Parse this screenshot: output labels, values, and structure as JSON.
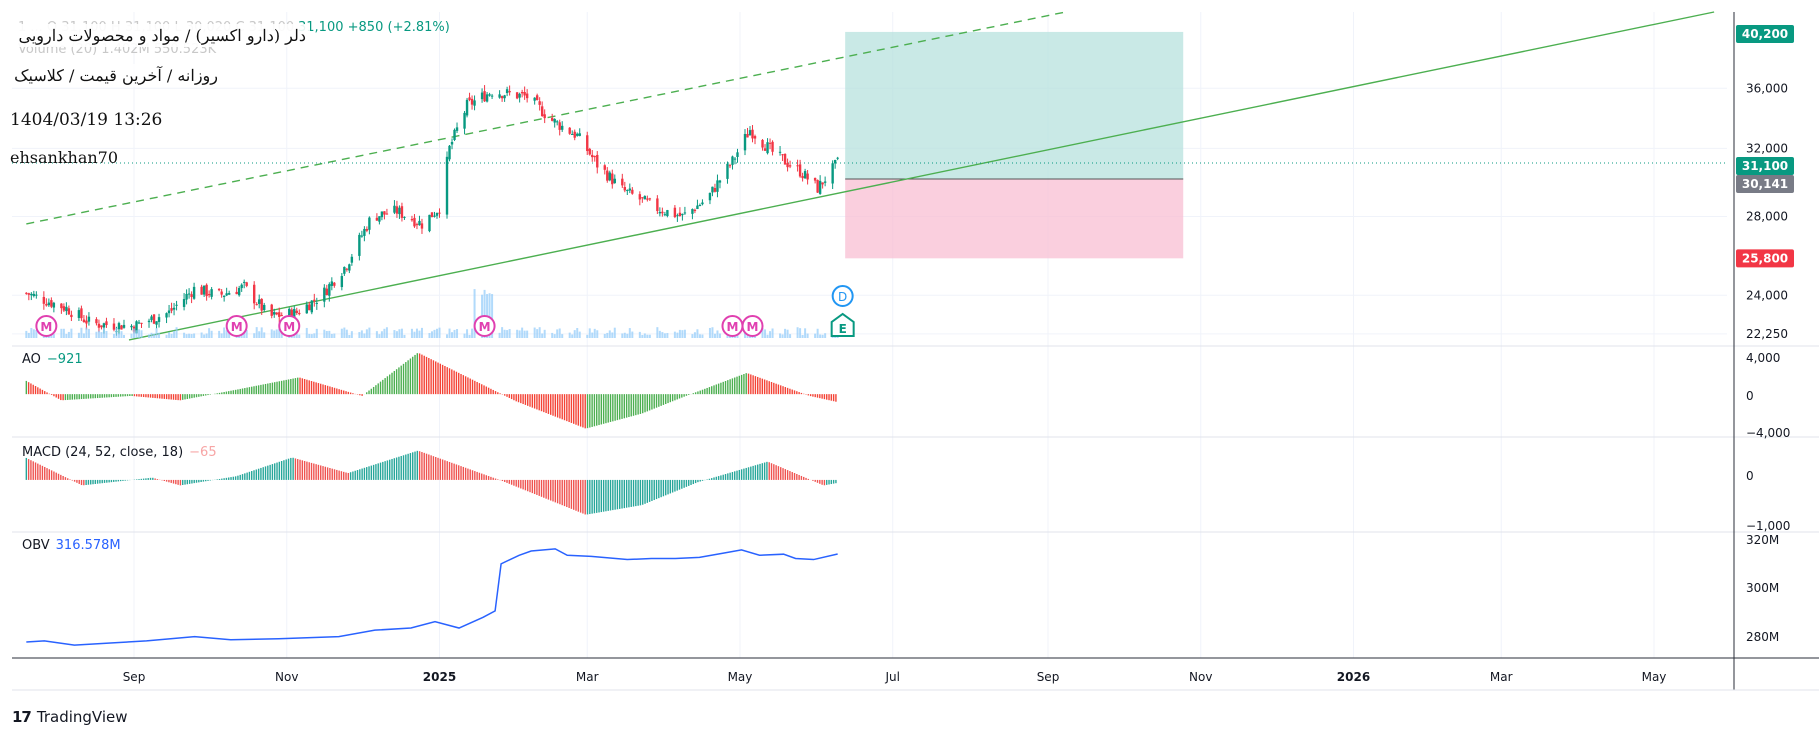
{
  "header": {
    "title": "دلر (دارو اکسیر) / مواد و محصولات دارویی",
    "subtitle": "روزانه / آخرین قیمت / کلاسیک",
    "datetime": "1404/03/19 13:26",
    "author": "ehsankhan70",
    "ohlc_ghost": "1 ... O 31,100 H 31,100 L 30,020 C 31,100",
    "volume_ghost": "Volume (20)  1.402M  550.523K",
    "change_abs": "+850",
    "change_pct": "(+2.81%)",
    "last_price_inline": "31,100"
  },
  "branding": {
    "logo": "TradingView"
  },
  "colors": {
    "up": "#089981",
    "down": "#f23645",
    "ao_up": "#4caf50",
    "ao_down": "#f44336",
    "macd_up": "#26a69a",
    "macd_down": "#ef5350",
    "obv": "#2962ff",
    "trend": "#4caf50",
    "event_m": "#e040b0",
    "event_d": "#2196f3",
    "event_e": "#089981",
    "profit_zone": "#b2dfdb",
    "loss_zone": "#f8bbd0"
  },
  "chart_data": {
    "type": "candlestick",
    "symbol_description": "دلر (دارو اکسیر) / مواد و محصولات دارویی",
    "timeframe": "daily",
    "x_ticks": [
      "Sep",
      "Nov",
      "2025",
      "Mar",
      "May",
      "Jul",
      "Sep",
      "Nov",
      "2026",
      "Mar",
      "May"
    ],
    "x_tick_dates": [
      "2024-09-01",
      "2024-11-01",
      "2025-01-01",
      "2025-03-01",
      "2025-05-01",
      "2025-07-01",
      "2025-09-01",
      "2025-11-01",
      "2026-01-01",
      "2026-03-01",
      "2026-05-01"
    ],
    "price_scale": {
      "type": "log",
      "ticks": [
        22250,
        24000,
        28000,
        32000,
        36000
      ],
      "ylim": [
        21900,
        41800
      ]
    },
    "price_path": [
      {
        "date": "2024-07-20",
        "close": 24100
      },
      {
        "date": "2024-08-05",
        "close": 23400
      },
      {
        "date": "2024-08-15",
        "close": 22700
      },
      {
        "date": "2024-09-01",
        "close": 22600
      },
      {
        "date": "2024-09-15",
        "close": 23200
      },
      {
        "date": "2024-09-25",
        "close": 24300
      },
      {
        "date": "2024-10-05",
        "close": 24000
      },
      {
        "date": "2024-10-15",
        "close": 24400
      },
      {
        "date": "2024-10-25",
        "close": 23000
      },
      {
        "date": "2024-11-05",
        "close": 23200
      },
      {
        "date": "2024-11-15",
        "close": 24000
      },
      {
        "date": "2024-11-25",
        "close": 25500
      },
      {
        "date": "2024-12-05",
        "close": 28000
      },
      {
        "date": "2024-12-15",
        "close": 28300
      },
      {
        "date": "2024-12-25",
        "close": 27600
      },
      {
        "date": "2025-01-01",
        "close": 28500
      },
      {
        "date": "2025-01-05",
        "close": 32000
      },
      {
        "date": "2025-01-12",
        "close": 34800
      },
      {
        "date": "2025-01-22",
        "close": 35800
      },
      {
        "date": "2025-02-05",
        "close": 35400
      },
      {
        "date": "2025-02-15",
        "close": 33800
      },
      {
        "date": "2025-02-25",
        "close": 32800
      },
      {
        "date": "2025-03-05",
        "close": 31000
      },
      {
        "date": "2025-03-15",
        "close": 29500
      },
      {
        "date": "2025-03-28",
        "close": 28500
      },
      {
        "date": "2025-04-08",
        "close": 28000
      },
      {
        "date": "2025-04-18",
        "close": 29000
      },
      {
        "date": "2025-04-28",
        "close": 31200
      },
      {
        "date": "2025-05-05",
        "close": 33200
      },
      {
        "date": "2025-05-15",
        "close": 31600
      },
      {
        "date": "2025-05-25",
        "close": 30600
      },
      {
        "date": "2025-06-01",
        "close": 29600
      },
      {
        "date": "2025-06-09",
        "close": 31100
      }
    ],
    "last_price": 31100,
    "price_labels": [
      {
        "value": "40,200",
        "role": "take-profit"
      },
      {
        "value": "31,100",
        "role": "last"
      },
      {
        "value": "30,141",
        "role": "entry"
      },
      {
        "value": "25,800",
        "role": "stop-loss"
      }
    ],
    "position": {
      "entry": 30141,
      "target": 40200,
      "stop": 25800,
      "start": "2025-06-12",
      "end": "2025-10-25"
    },
    "trendlines": [
      {
        "style": "solid",
        "from": {
          "date": "2024-08-30",
          "price": 21990
        },
        "to": {
          "date": "2026-05-25",
          "price": 41800
        }
      },
      {
        "style": "dashed",
        "from": {
          "date": "2024-07-20",
          "price": 27600
        },
        "to": {
          "date": "2025-09-08",
          "price": 41800
        }
      }
    ],
    "events": [
      {
        "type": "M",
        "date": "2024-07-28"
      },
      {
        "type": "M",
        "date": "2024-10-12"
      },
      {
        "type": "M",
        "date": "2024-11-02"
      },
      {
        "type": "M",
        "date": "2025-01-19"
      },
      {
        "type": "M",
        "date": "2025-04-28"
      },
      {
        "type": "M",
        "date": "2025-05-06"
      },
      {
        "type": "D",
        "date": "2025-06-11"
      },
      {
        "type": "E",
        "date": "2025-06-11"
      }
    ],
    "indicators": [
      {
        "name": "AO",
        "value": "−921",
        "ticks": [
          "4,000",
          "0",
          "−4,000"
        ],
        "ylim": [
          -4400,
          5000
        ],
        "profile": [
          [
            0,
            1500
          ],
          [
            25,
            -700
          ],
          [
            75,
            -200
          ],
          [
            110,
            -700
          ],
          [
            150,
            500
          ],
          [
            195,
            1900
          ],
          [
            240,
            -200
          ],
          [
            280,
            4700
          ],
          [
            350,
            -800
          ],
          [
            400,
            -3900
          ],
          [
            440,
            -2200
          ],
          [
            470,
            -300
          ],
          [
            515,
            2400
          ],
          [
            560,
            -200
          ],
          [
            580,
            -900
          ]
        ]
      },
      {
        "name": "MACD (24, 52, close, 18)",
        "value": "−65",
        "ticks": [
          "0",
          "−1,000"
        ],
        "ylim": [
          -1050,
          850
        ],
        "profile": [
          [
            0,
            480
          ],
          [
            40,
            -120
          ],
          [
            90,
            50
          ],
          [
            110,
            -120
          ],
          [
            150,
            80
          ],
          [
            190,
            490
          ],
          [
            230,
            150
          ],
          [
            280,
            640
          ],
          [
            340,
            -20
          ],
          [
            400,
            -760
          ],
          [
            440,
            -550
          ],
          [
            480,
            -50
          ],
          [
            530,
            400
          ],
          [
            570,
            -120
          ],
          [
            580,
            -65
          ]
        ]
      },
      {
        "name": "OBV",
        "value": "316.578M",
        "ticks": [
          "320M",
          "300M",
          "280M"
        ],
        "ylim": [
          268000000,
          325000000
        ],
        "series": [
          [
            0,
            275.5
          ],
          [
            15,
            276.0
          ],
          [
            40,
            274.0
          ],
          [
            70,
            275.0
          ],
          [
            100,
            276.0
          ],
          [
            140,
            278.0
          ],
          [
            170,
            276.5
          ],
          [
            210,
            277.0
          ],
          [
            260,
            278.0
          ],
          [
            290,
            281.0
          ],
          [
            320,
            282.0
          ],
          [
            340,
            285.0
          ],
          [
            360,
            282.0
          ],
          [
            380,
            287.0
          ],
          [
            390,
            290.0
          ],
          [
            395,
            312.0
          ],
          [
            410,
            316.0
          ],
          [
            420,
            318.0
          ],
          [
            440,
            319.0
          ],
          [
            450,
            316.0
          ],
          [
            470,
            315.5
          ],
          [
            500,
            314.0
          ],
          [
            520,
            314.5
          ],
          [
            540,
            314.5
          ],
          [
            560,
            315.0
          ],
          [
            580,
            317.0
          ],
          [
            595,
            318.5
          ],
          [
            610,
            316.0
          ],
          [
            630,
            316.5
          ],
          [
            640,
            314.5
          ],
          [
            655,
            314.0
          ],
          [
            675,
            316.6
          ]
        ]
      }
    ]
  }
}
